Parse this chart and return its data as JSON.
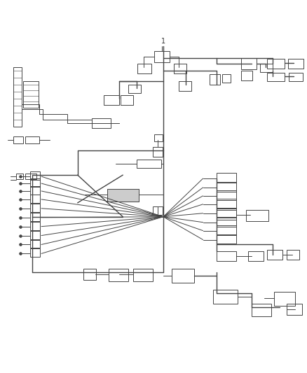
{
  "background_color": "#ffffff",
  "line_color": "#444444",
  "fig_width": 4.38,
  "fig_height": 5.33,
  "dpi": 100,
  "label_number": "1"
}
